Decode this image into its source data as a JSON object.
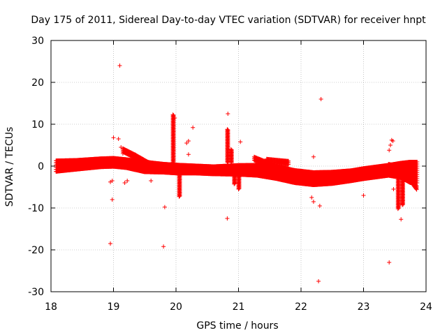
{
  "chart_data": {
    "type": "scatter",
    "title": "Day 175 of 2011, Sidereal Day-to-day VTEC variation (SDTVAR) for receiver hnpt",
    "xlabel": "GPS time / hours",
    "ylabel": "SDTVAR / TECUs",
    "xlim": [
      18,
      24
    ],
    "ylim": [
      -30,
      30
    ],
    "xticks": [
      "18",
      "19",
      "20",
      "21",
      "22",
      "23",
      "24"
    ],
    "yticks": [
      "30",
      "20",
      "10",
      "0",
      "-10",
      "-20",
      "-30"
    ],
    "grid": true,
    "marker": "+",
    "color": "#ff0000",
    "band": [
      [
        18.08,
        0.0,
        2.6
      ],
      [
        18.4,
        0.3,
        2.2
      ],
      [
        18.8,
        0.8,
        2.0
      ],
      [
        19.0,
        0.9,
        2.0
      ],
      [
        19.2,
        0.6,
        2.0
      ],
      [
        19.5,
        -0.2,
        2.4
      ],
      [
        19.8,
        -0.5,
        2.0
      ],
      [
        20.0,
        -0.7,
        2.0
      ],
      [
        20.3,
        -0.8,
        1.8
      ],
      [
        20.6,
        -1.0,
        1.8
      ],
      [
        21.0,
        -0.9,
        2.2
      ],
      [
        21.3,
        -1.0,
        2.5
      ],
      [
        21.6,
        -1.5,
        3.0
      ],
      [
        21.9,
        -2.5,
        3.0
      ],
      [
        22.2,
        -3.0,
        3.0
      ],
      [
        22.5,
        -2.8,
        2.8
      ],
      [
        22.8,
        -2.3,
        2.5
      ],
      [
        23.0,
        -1.8,
        2.5
      ],
      [
        23.2,
        -1.4,
        2.5
      ],
      [
        23.4,
        -1.0,
        2.5
      ],
      [
        23.6,
        -1.0,
        3.5
      ],
      [
        23.75,
        -1.5,
        5.0
      ],
      [
        23.86,
        -1.5,
        5.0
      ]
    ],
    "wings": [
      [
        [
          19.15,
          4.0
        ],
        [
          19.35,
          2.5
        ],
        [
          19.55,
          0.8
        ],
        [
          19.75,
          -0.2
        ]
      ],
      [
        [
          21.25,
          2.0
        ],
        [
          21.45,
          0.8
        ],
        [
          21.7,
          -1.0
        ],
        [
          21.95,
          -2.2
        ]
      ],
      [
        [
          21.45,
          1.5
        ],
        [
          21.65,
          1.2
        ],
        [
          21.8,
          1.0
        ]
      ],
      [
        [
          23.4,
          0.3
        ],
        [
          23.6,
          -0.5
        ],
        [
          23.75,
          -3.0
        ],
        [
          23.85,
          -5.0
        ]
      ]
    ],
    "spikes": [
      {
        "x": 19.95,
        "y0": 0,
        "y1": 12.5
      },
      {
        "x": 20.05,
        "y0": -1,
        "y1": -7.5
      },
      {
        "x": 20.82,
        "y0": 1,
        "y1": 8.8
      },
      {
        "x": 20.88,
        "y0": 1,
        "y1": 4.0
      },
      {
        "x": 20.93,
        "y0": -1,
        "y1": -4.5
      },
      {
        "x": 21.0,
        "y0": -1,
        "y1": -5.5
      },
      {
        "x": 23.55,
        "y0": -3,
        "y1": -10.5
      },
      {
        "x": 23.62,
        "y0": -3,
        "y1": -9.5
      }
    ],
    "outliers": [
      [
        19.1,
        24.0
      ],
      [
        22.32,
        16.0
      ],
      [
        20.83,
        12.5
      ],
      [
        19.98,
        11.5
      ],
      [
        20.27,
        9.2
      ],
      [
        19.0,
        6.8
      ],
      [
        19.08,
        6.5
      ],
      [
        19.12,
        4.5
      ],
      [
        20.2,
        6.0
      ],
      [
        20.17,
        5.5
      ],
      [
        21.03,
        5.8
      ],
      [
        23.45,
        6.2
      ],
      [
        23.47,
        6.0
      ],
      [
        23.43,
        5.0
      ],
      [
        23.41,
        3.8
      ],
      [
        22.2,
        2.2
      ],
      [
        20.2,
        2.8
      ],
      [
        19.15,
        3.0
      ],
      [
        19.22,
        -3.5
      ],
      [
        19.18,
        -4.0
      ],
      [
        18.95,
        -3.8
      ],
      [
        18.98,
        -3.5
      ],
      [
        19.6,
        -3.5
      ],
      [
        22.17,
        -7.5
      ],
      [
        22.2,
        -8.5
      ],
      [
        22.3,
        -9.5
      ],
      [
        18.98,
        -8.0
      ],
      [
        19.82,
        -9.8
      ],
      [
        23.0,
        -7.0
      ],
      [
        23.48,
        -5.5
      ],
      [
        23.6,
        -12.7
      ],
      [
        20.82,
        -12.5
      ],
      [
        18.95,
        -18.5
      ],
      [
        19.8,
        -19.2
      ],
      [
        23.41,
        -23.0
      ],
      [
        22.28,
        -27.5
      ]
    ]
  }
}
